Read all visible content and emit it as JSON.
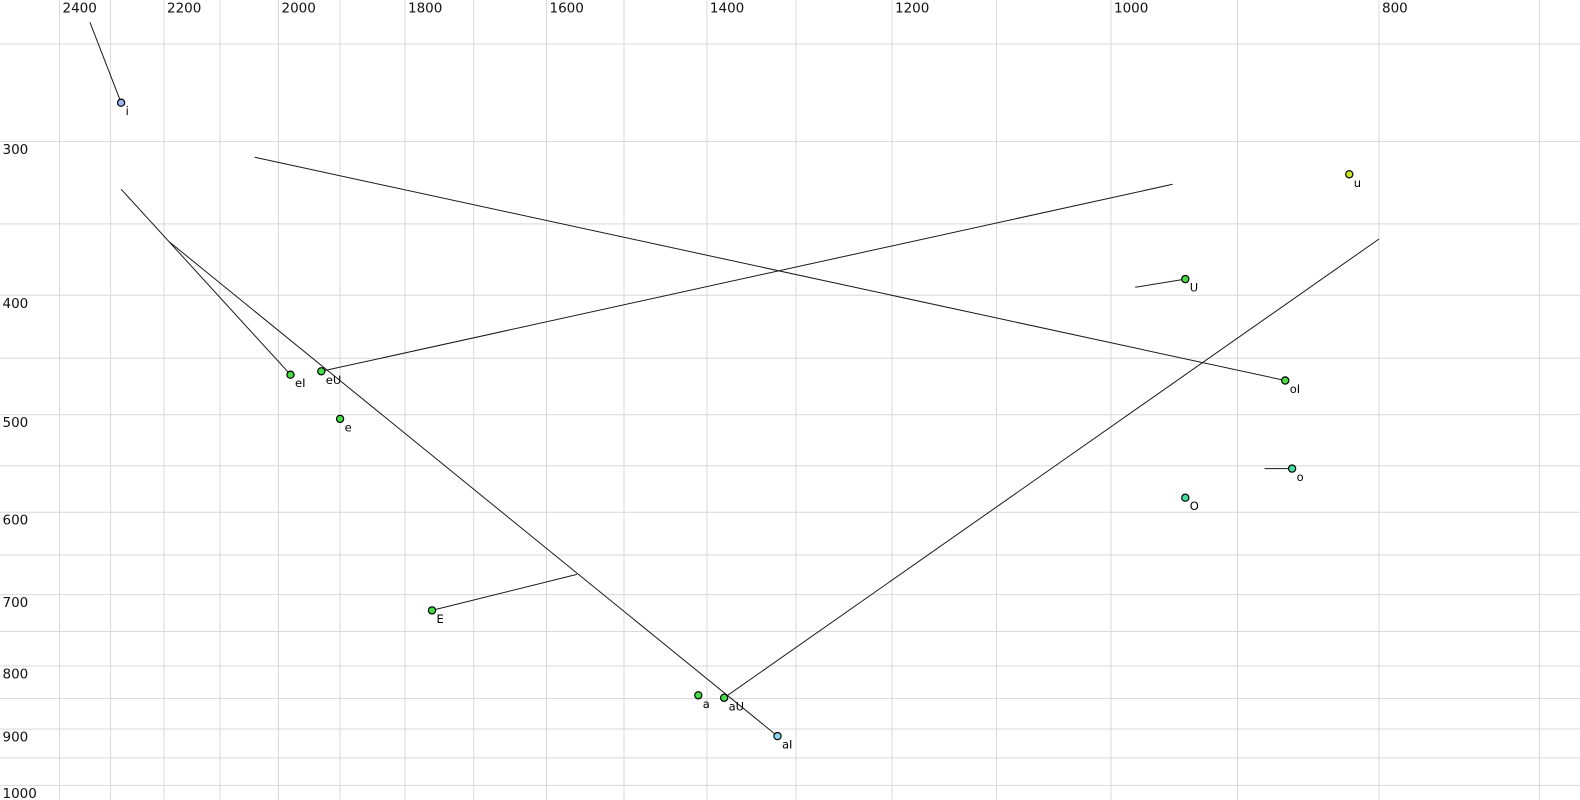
{
  "chart_data": {
    "type": "scatter",
    "title": "",
    "x_axis": {
      "scale": "log",
      "direction": "reversed-left-high",
      "tick_values": [
        2400,
        2200,
        2000,
        1800,
        1600,
        1400,
        1200,
        1000,
        800
      ],
      "tick_labels": [
        "2400",
        "2200",
        "2000",
        "1800",
        "1600",
        "1400",
        "1200",
        "1000",
        "800"
      ],
      "gridline_step_hz": 100,
      "gridlines_from": 700,
      "gridlines_to": 2400,
      "visible_range_hz": [
        2522,
        677
      ]
    },
    "y_axis": {
      "scale": "log",
      "direction": "down-high",
      "tick_values": [
        300,
        400,
        500,
        600,
        700,
        800,
        900,
        1000
      ],
      "tick_labels": [
        "300",
        "400",
        "500",
        "600",
        "700",
        "800",
        "900",
        "1000"
      ],
      "gridline_step_hz": 50,
      "gridlines_from": 250,
      "gridlines_to": 1000,
      "visible_range_hz": [
        230,
        1028
      ]
    },
    "points": [
      {
        "label": "i",
        "f2": 2280,
        "f1": 279,
        "glide_f2": 2340,
        "glide_f1": 240,
        "color": "#99b6ee"
      },
      {
        "label": "eI",
        "f2": 1980,
        "f1": 464,
        "glide_f2": 2280,
        "glide_f1": 328,
        "color": "#44dd44"
      },
      {
        "label": "eU",
        "f2": 1930,
        "f1": 461,
        "glide_f2": 950,
        "glide_f1": 325,
        "color": "#44dd44"
      },
      {
        "label": "e",
        "f2": 1900,
        "f1": 504,
        "glide_f2": null,
        "glide_f1": null,
        "color": "#44dd44"
      },
      {
        "label": "E",
        "f2": 1760,
        "f1": 721,
        "glide_f2": 1560,
        "glide_f1": 674,
        "color": "#44dd44"
      },
      {
        "label": "a",
        "f2": 1410,
        "f1": 845,
        "glide_f2": null,
        "glide_f1": null,
        "color": "#44dd44"
      },
      {
        "label": "aU",
        "f2": 1380,
        "f1": 849,
        "glide_f2": 800,
        "glide_f1": 360,
        "color": "#44dd44"
      },
      {
        "label": "aI",
        "f2": 1320,
        "f1": 912,
        "glide_f2": 2190,
        "glide_f1": 362,
        "color": "#86dcec"
      },
      {
        "label": "u",
        "f2": 820,
        "f1": 319,
        "glide_f2": null,
        "glide_f1": null,
        "color": "#cde725"
      },
      {
        "label": "U",
        "f2": 940,
        "f1": 388,
        "glide_f2": 980,
        "glide_f1": 394,
        "color": "#44dd44"
      },
      {
        "label": "oI",
        "f2": 865,
        "f1": 469,
        "glide_f2": 2040,
        "glide_f1": 309,
        "color": "#44dd44"
      },
      {
        "label": "o",
        "f2": 860,
        "f1": 553,
        "glide_f2": 880,
        "glide_f1": 553,
        "color": "#44dda0"
      },
      {
        "label": "O",
        "f2": 940,
        "f1": 584,
        "glide_f2": null,
        "glide_f1": null,
        "color": "#44dda0"
      }
    ],
    "colors": {
      "background": "#ffffff",
      "gridline": "#d9d9d9",
      "trajectory_line": "#1a1a1a",
      "point_outline": "#000000",
      "point_label_text": "#000000",
      "axis_tick_text": "#111111"
    }
  }
}
